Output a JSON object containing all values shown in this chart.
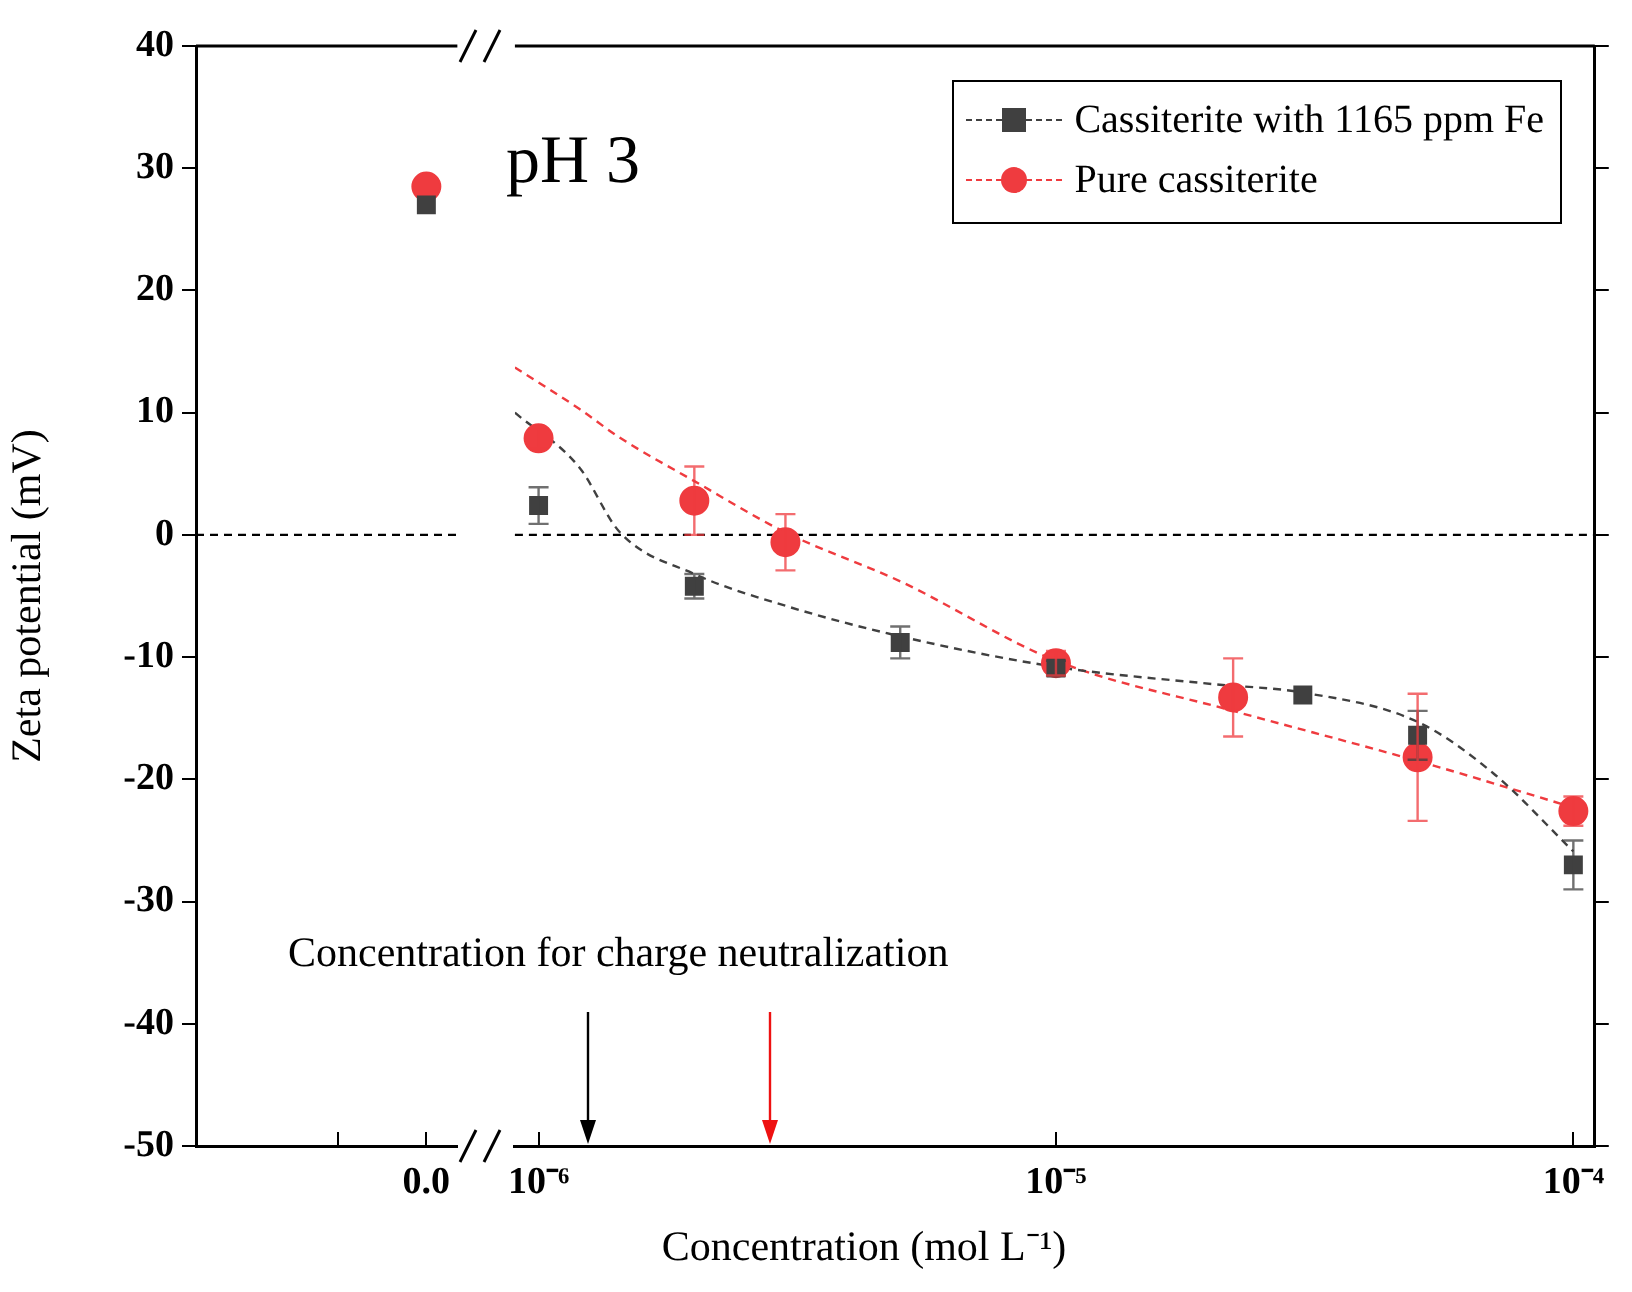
{
  "chart_data": [
    {
      "type": "scatter",
      "ylabel": "Zeta potential (mV)",
      "categories": [
        null,
        "0.0"
      ],
      "ylim": [
        -50,
        40
      ],
      "yticks": [
        -50,
        -40,
        -30,
        -20,
        -10,
        0,
        10,
        20,
        30,
        40
      ],
      "grid": false,
      "series": [
        {
          "type": "scatter",
          "marker": "square",
          "color": "#404040",
          "values": [
            null,
            27
          ]
        },
        {
          "type": "scatter",
          "marker": "circle",
          "color": "#ef3b3f",
          "values": [
            null,
            28.5
          ]
        }
      ],
      "ref_lines": [
        {
          "axis": "y",
          "value": 0,
          "color": "#000000",
          "line_style": "dashed"
        }
      ]
    },
    {
      "type": "scatter",
      "xlabel": "Concentration (mol L⁻¹)",
      "log": "x",
      "xlim": [
        9e-07,
        0.00011
      ],
      "xticks": [
        {
          "value": 1e-06,
          "label": "10⁻⁶"
        },
        {
          "value": 1e-05,
          "label": "10⁻⁵"
        },
        {
          "value": 0.0001,
          "label": "10⁻⁴"
        }
      ],
      "ylim": [
        -50,
        40
      ],
      "yticks": [
        -50,
        -40,
        -30,
        -20,
        -10,
        0,
        10,
        20,
        30,
        40
      ],
      "tick_labels": "x",
      "grid": false,
      "legend": "top right",
      "annotations": [
        "pH 3",
        "Concentration for charge neutralization"
      ],
      "series": [
        {
          "type": "line",
          "marker": "none",
          "line_style": "dashed",
          "color": "#404040",
          "x": [
            9e-07,
            1.2e-06,
            1.43e-06,
            2e-06,
            3e-06,
            5e-06,
            1e-05,
            2e-05,
            3e-05,
            5e-05,
            7e-05,
            0.0001
          ],
          "values": [
            10,
            5.5,
            0.3,
            -3.2,
            -5.8,
            -8.3,
            -10.8,
            -12.2,
            -12.9,
            -15.3,
            -19.5,
            -25.9
          ]
        },
        {
          "type": "line",
          "marker": "none",
          "line_style": "dashed",
          "color": "#ef3b3f",
          "x": [
            9e-07,
            1.2e-06,
            1.43e-06,
            2e-06,
            3e-06,
            5e-06,
            1e-05,
            2.2e-05,
            5e-05,
            0.0001
          ],
          "values": [
            13.7,
            10.3,
            8,
            4.4,
            0.2,
            -3.8,
            -10.3,
            -14.4,
            -18.5,
            -22.3
          ]
        },
        {
          "type": "scatter",
          "name": "Cassiterite with 1165 ppm Fe",
          "marker": "square",
          "color": "#404040",
          "x": [
            1e-06,
            2e-06,
            5e-06,
            1e-05,
            3e-05,
            5e-05,
            0.0001
          ],
          "values": [
            2.4,
            -4.2,
            -8.8,
            -10.9,
            -13.1,
            -16.4,
            -27
          ],
          "errors": [
            1.5,
            1,
            1.3,
            0.6,
            null,
            2,
            2
          ]
        },
        {
          "type": "scatter",
          "name": "Pure cassiterite",
          "marker": "circle",
          "color": "#ef3b3f",
          "x": [
            1e-06,
            2e-06,
            3e-06,
            1e-05,
            2.2e-05,
            5e-05,
            0.0001
          ],
          "values": [
            7.9,
            2.8,
            -0.6,
            -10.5,
            -13.3,
            -18.2,
            -22.6
          ],
          "errors": [
            0.8,
            2.8,
            2.3,
            1,
            3.2,
            5.2,
            1.2
          ]
        }
      ],
      "ref_lines": [
        {
          "axis": "y",
          "value": 0,
          "color": "#000000",
          "line_style": "dashed"
        }
      ]
    }
  ]
}
